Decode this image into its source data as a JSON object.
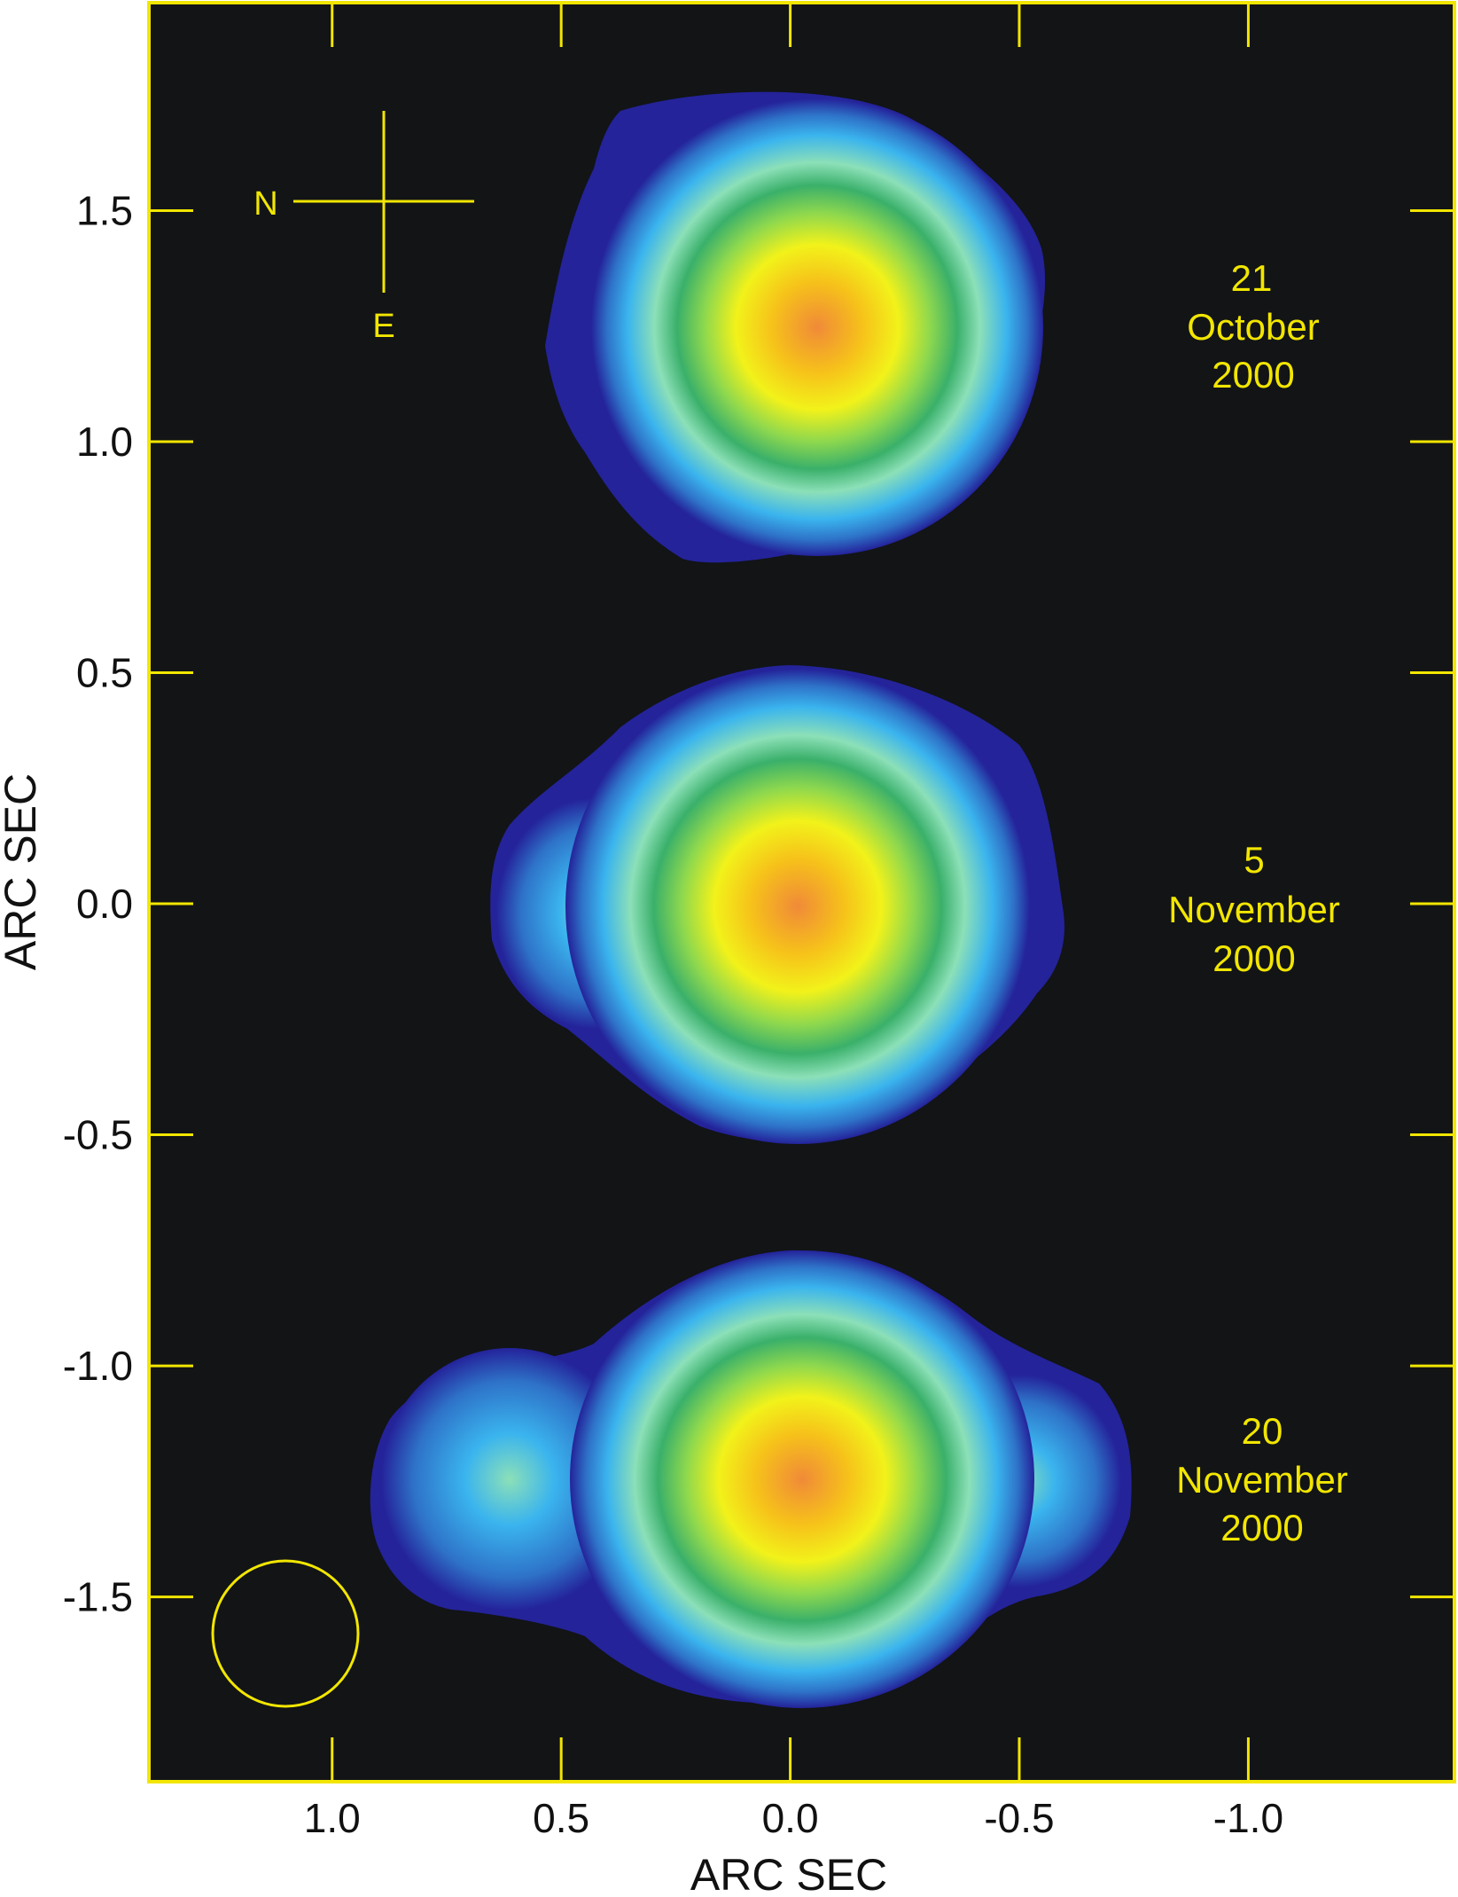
{
  "figure": {
    "xlabel": "ARC SEC",
    "ylabel": "ARC SEC",
    "xlim": [
      1.4,
      -1.45
    ],
    "ylim": [
      -1.9,
      1.95
    ],
    "x_ticks": [
      "1.0",
      "0.5",
      "0.0",
      "-0.5",
      "-1.0"
    ],
    "y_ticks": [
      "1.5",
      "1.0",
      "0.5",
      "0.0",
      "-0.5",
      "-1.0",
      "-1.5"
    ],
    "frame_color": "#f2e600",
    "background_color": "#121416",
    "colormap": [
      "#f08a38",
      "#f6c21a",
      "#f2f21a",
      "#8ed84e",
      "#3ab06a",
      "#8ce0b8",
      "#3ab4ee",
      "#2e72c8",
      "#24239a"
    ],
    "compass": {
      "north_label": "N",
      "east_label": "E"
    },
    "beam_icon": "circle-outline",
    "epochs": [
      {
        "date_lines": [
          "21",
          "October",
          "2000"
        ]
      },
      {
        "date_lines": [
          "5",
          "November",
          "2000"
        ]
      },
      {
        "date_lines": [
          "20",
          "November",
          "2000"
        ]
      }
    ]
  }
}
